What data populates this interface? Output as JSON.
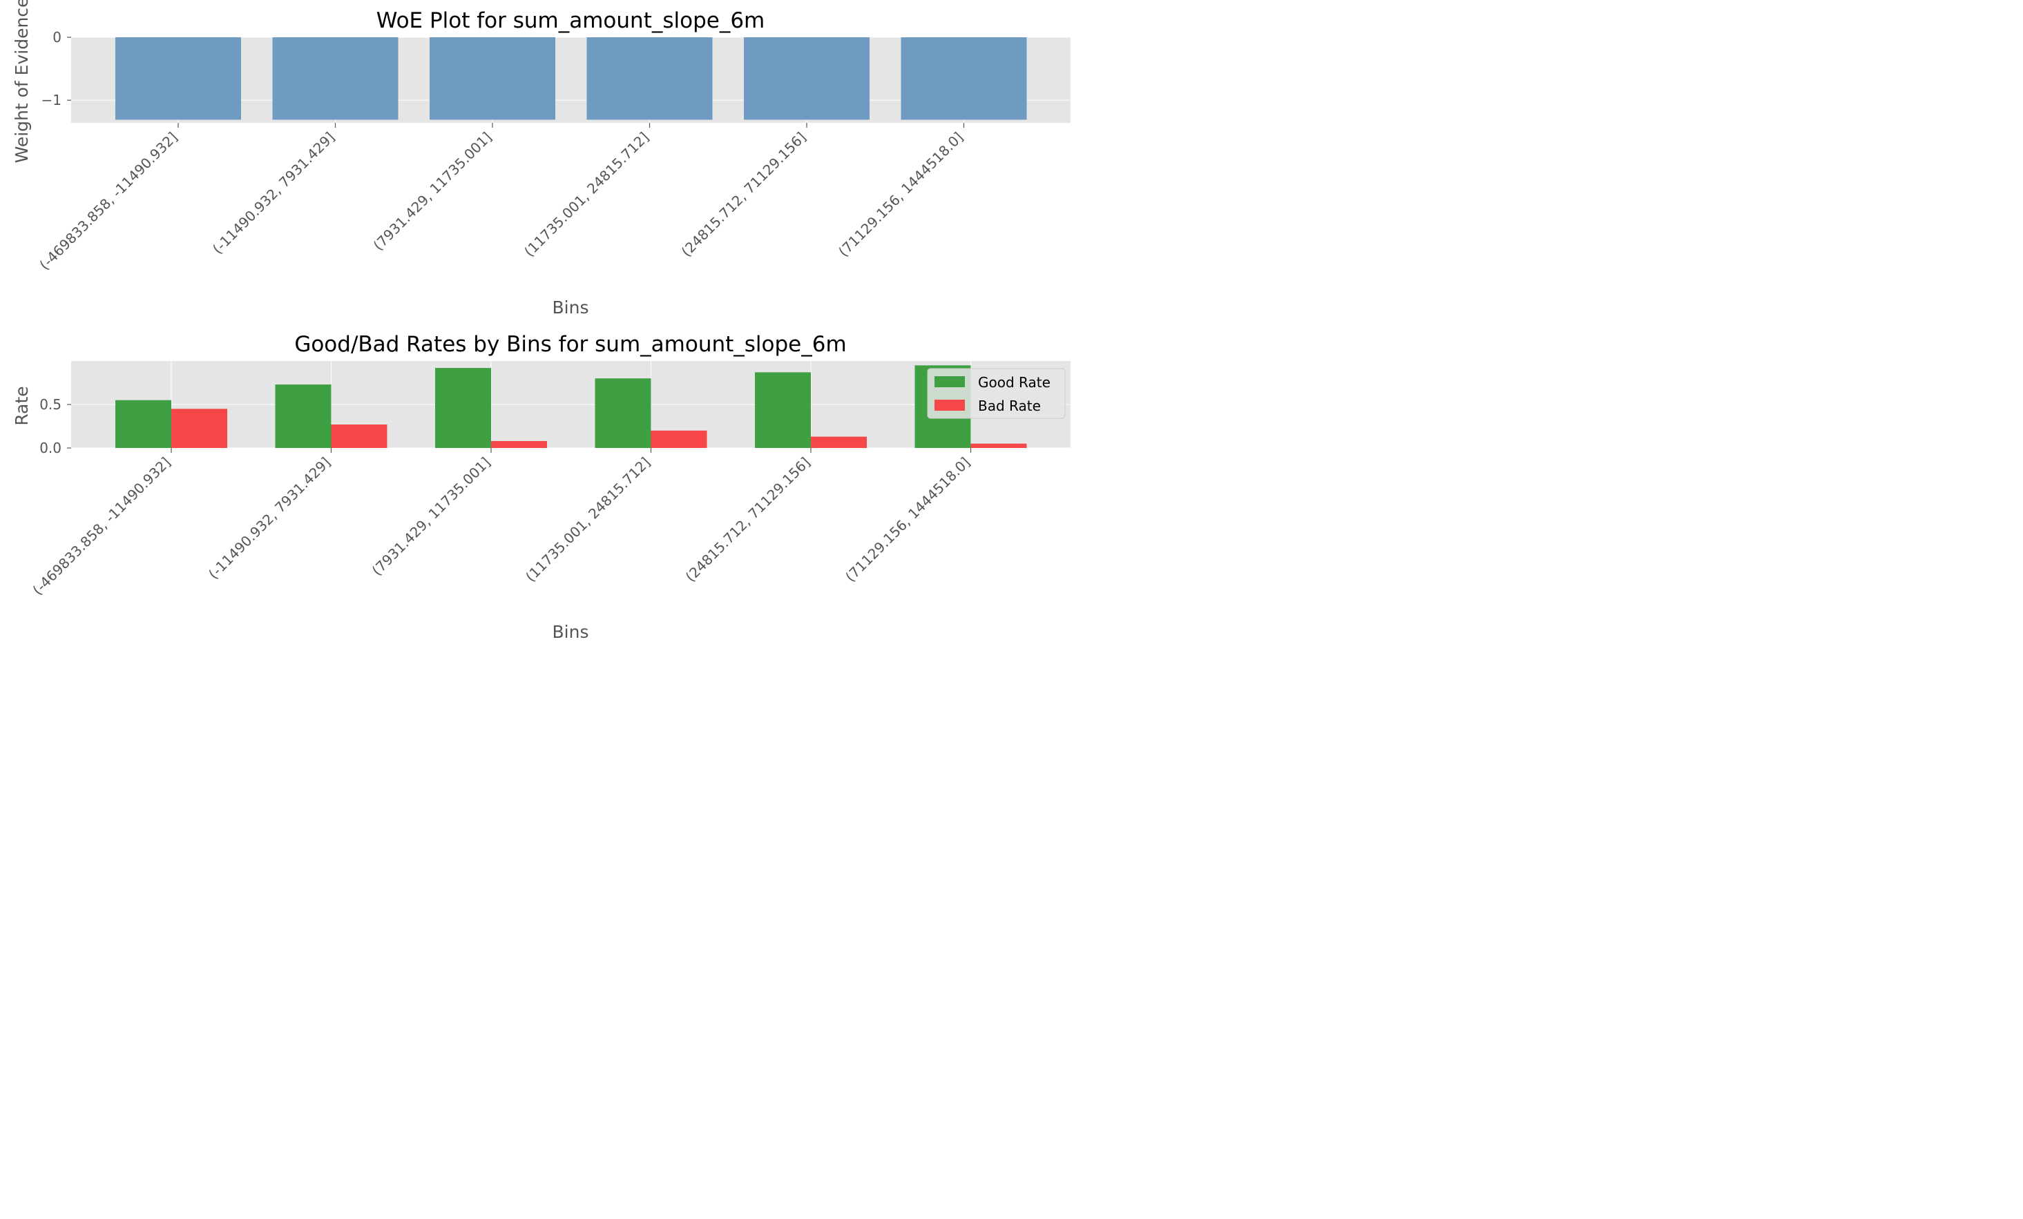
{
  "chart_data": [
    {
      "type": "bar",
      "title": "WoE Plot for sum_amount_slope_6m",
      "xlabel": "Bins",
      "ylabel": "Weight of Evidence",
      "categories": [
        "(-469833.858, -11490.932]",
        "(-11490.932, 7931.429]",
        "(7931.429, 11735.001]",
        "(11735.001, 24815.712]",
        "(24815.712, 71129.156]",
        "(71129.156, 1444518.0]"
      ],
      "values": [
        -1.31,
        -1.31,
        -1.31,
        -1.31,
        -1.31,
        -1.31
      ],
      "yticks": [
        0,
        -1
      ],
      "ytick_labels": [
        "0",
        "−1"
      ],
      "ylim": [
        -1.36,
        0
      ],
      "bar_color": "#6f9ac2",
      "grid": true
    },
    {
      "type": "bar",
      "title": "Good/Bad Rates by Bins for sum_amount_slope_6m",
      "xlabel": "Bins",
      "ylabel": "Rate",
      "categories": [
        "(-469833.858, -11490.932]",
        "(-11490.932, 7931.429]",
        "(7931.429, 11735.001]",
        "(11735.001, 24815.712]",
        "(24815.712, 71129.156]",
        "(71129.156, 1444518.0]"
      ],
      "series": [
        {
          "name": "Good Rate",
          "values": [
            0.55,
            0.73,
            0.92,
            0.8,
            0.87,
            0.95
          ],
          "color": "#3f9f43"
        },
        {
          "name": "Bad Rate",
          "values": [
            0.45,
            0.27,
            0.08,
            0.2,
            0.13,
            0.05
          ],
          "color": "#f54747"
        }
      ],
      "yticks": [
        0,
        0.5
      ],
      "ytick_labels": [
        "0.0",
        "0.5"
      ],
      "ylim": [
        0,
        1.0
      ],
      "legend": "top-right",
      "grid": true
    }
  ]
}
